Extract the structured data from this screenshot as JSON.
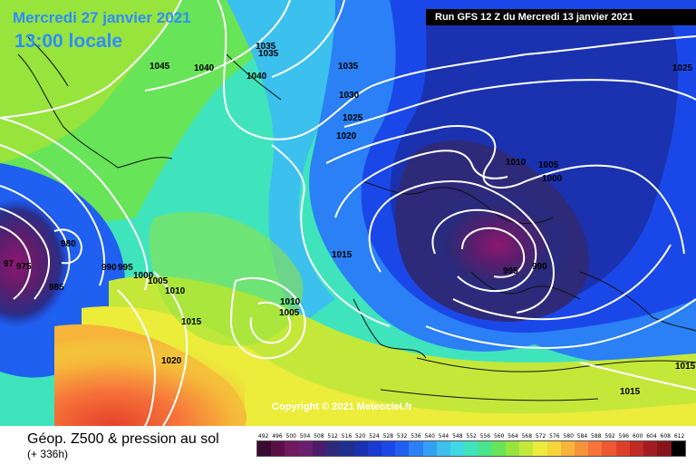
{
  "header": {
    "date_label": "Mercredi 27 janvier 2021",
    "time_label": "13:00 locale",
    "run_label": "Run GFS 12 Z du Mercredi 13 janvier 2021"
  },
  "map": {
    "copyright": "Copyright © 2021 Meteociel.fr",
    "isobar_labels": [
      "1045",
      "1040",
      "1040",
      "1035",
      "1035",
      "1035",
      "1030",
      "1025",
      "1020",
      "1015",
      "1010",
      "1010",
      "1005",
      "1005",
      "1000",
      "995",
      "990",
      "980",
      "985",
      "975",
      "97",
      "1005",
      "1010",
      "1015",
      "1020",
      "1025",
      "1015",
      "1015",
      "1010",
      "1005",
      "1000",
      "995",
      "990",
      "980",
      "1015",
      "1015"
    ]
  },
  "legend": {
    "title": "Géop. Z500 & pression au sol",
    "subtitle": "(+ 336h)",
    "scale_values": [
      "492",
      "496",
      "500",
      "504",
      "508",
      "512",
      "516",
      "520",
      "524",
      "528",
      "532",
      "536",
      "540",
      "544",
      "548",
      "552",
      "556",
      "560",
      "564",
      "568",
      "572",
      "576",
      "580",
      "584",
      "588",
      "592",
      "596",
      "600",
      "604",
      "608",
      "612"
    ],
    "scale_colors": [
      "#3a0a30",
      "#5a1045",
      "#701860",
      "#6a1e6e",
      "#4a1c6a",
      "#2e2a7a",
      "#1e2f8e",
      "#1a32b0",
      "#1a3ad0",
      "#1a48e8",
      "#2060f0",
      "#2a80f4",
      "#34a0f4",
      "#3cc0ee",
      "#40d8e4",
      "#40e4bc",
      "#4ae48a",
      "#68e458",
      "#96e43c",
      "#c4e83a",
      "#ecec3a",
      "#f6d43a",
      "#f6b43a",
      "#f6943a",
      "#f6743a",
      "#ee5830",
      "#dc402a",
      "#c02a24",
      "#a41c20",
      "#861418",
      "#000000"
    ]
  }
}
